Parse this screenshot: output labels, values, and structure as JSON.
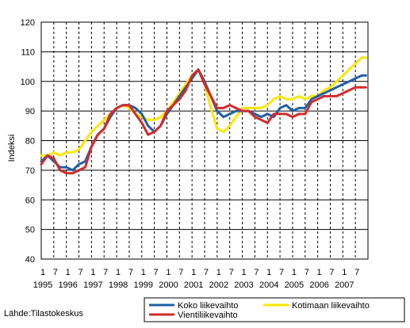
{
  "source": "Lähde:Tilastokeskus",
  "chart_data": {
    "type": "line",
    "title": "",
    "ylabel": "Indeksi",
    "xlabel": "",
    "ylim": [
      40,
      120
    ],
    "yticks": [
      40,
      50,
      60,
      70,
      80,
      90,
      100,
      110,
      120
    ],
    "month_ticks": [
      "1",
      "7",
      "1",
      "7",
      "1",
      "7",
      "1",
      "7",
      "1",
      "7",
      "1",
      "7",
      "1",
      "7",
      "1",
      "7",
      "1",
      "7",
      "1",
      "7",
      "1",
      "7",
      "1",
      "7",
      "1",
      "7"
    ],
    "years": [
      "1995",
      "1996",
      "1997",
      "1998",
      "1999",
      "2000",
      "2001",
      "2002",
      "2003",
      "2004",
      "2005",
      "2006",
      "2007"
    ],
    "x_start": "1995-01",
    "x_end": "2007-12",
    "grid": "horizontal solid, vertical dashed",
    "legend_position": "bottom",
    "colors": {
      "Koko liikevaihto": "#1f5fa8",
      "Kotimaan liikevaihto": "#ffe600",
      "Vientiliikevaihto": "#d42a2a"
    },
    "series": [
      {
        "name": "Koko liikevaihto",
        "values": [
          [
            0,
            73
          ],
          [
            3,
            75
          ],
          [
            6,
            73
          ],
          [
            9,
            71
          ],
          [
            12,
            71
          ],
          [
            15,
            70
          ],
          [
            18,
            72
          ],
          [
            21,
            73
          ],
          [
            24,
            78
          ],
          [
            27,
            82
          ],
          [
            30,
            84
          ],
          [
            33,
            88
          ],
          [
            36,
            91
          ],
          [
            39,
            92
          ],
          [
            42,
            92
          ],
          [
            45,
            91
          ],
          [
            48,
            89
          ],
          [
            51,
            85
          ],
          [
            54,
            83
          ],
          [
            57,
            85
          ],
          [
            60,
            89
          ],
          [
            63,
            92
          ],
          [
            66,
            95
          ],
          [
            69,
            98
          ],
          [
            72,
            101
          ],
          [
            75,
            104
          ],
          [
            78,
            100
          ],
          [
            81,
            95
          ],
          [
            84,
            90
          ],
          [
            87,
            88
          ],
          [
            90,
            89
          ],
          [
            93,
            90
          ],
          [
            96,
            90
          ],
          [
            99,
            90
          ],
          [
            102,
            89
          ],
          [
            105,
            88
          ],
          [
            108,
            89
          ],
          [
            111,
            88
          ],
          [
            114,
            91
          ],
          [
            117,
            92
          ],
          [
            120,
            90
          ],
          [
            123,
            91
          ],
          [
            126,
            91
          ],
          [
            129,
            94
          ],
          [
            132,
            95
          ],
          [
            135,
            96
          ],
          [
            138,
            97
          ],
          [
            141,
            98
          ],
          [
            144,
            99
          ],
          [
            147,
            100
          ],
          [
            150,
            101
          ],
          [
            153,
            102
          ],
          [
            155,
            102
          ]
        ]
      },
      {
        "name": "Kotimaan liikevaihto",
        "values": [
          [
            0,
            75
          ],
          [
            3,
            75
          ],
          [
            6,
            76
          ],
          [
            9,
            75
          ],
          [
            12,
            76
          ],
          [
            15,
            76
          ],
          [
            18,
            77
          ],
          [
            21,
            80
          ],
          [
            24,
            83
          ],
          [
            27,
            85
          ],
          [
            30,
            87
          ],
          [
            33,
            89
          ],
          [
            36,
            91
          ],
          [
            39,
            92
          ],
          [
            42,
            91
          ],
          [
            45,
            89
          ],
          [
            48,
            88
          ],
          [
            51,
            87
          ],
          [
            54,
            87
          ],
          [
            57,
            88
          ],
          [
            60,
            90
          ],
          [
            63,
            93
          ],
          [
            66,
            96
          ],
          [
            69,
            99
          ],
          [
            72,
            102
          ],
          [
            75,
            104
          ],
          [
            78,
            99
          ],
          [
            81,
            91
          ],
          [
            84,
            84
          ],
          [
            87,
            83
          ],
          [
            90,
            85
          ],
          [
            93,
            88
          ],
          [
            96,
            91
          ],
          [
            99,
            91
          ],
          [
            102,
            91
          ],
          [
            105,
            91
          ],
          [
            108,
            92
          ],
          [
            111,
            94
          ],
          [
            114,
            95
          ],
          [
            117,
            94
          ],
          [
            120,
            94
          ],
          [
            123,
            95
          ],
          [
            126,
            94
          ],
          [
            129,
            95
          ],
          [
            132,
            95
          ],
          [
            135,
            97
          ],
          [
            138,
            98
          ],
          [
            141,
            100
          ],
          [
            144,
            102
          ],
          [
            147,
            104
          ],
          [
            150,
            106
          ],
          [
            153,
            108
          ],
          [
            155,
            108
          ]
        ]
      },
      {
        "name": "Vientiliikevaihto",
        "values": [
          [
            0,
            72
          ],
          [
            3,
            75
          ],
          [
            6,
            74
          ],
          [
            9,
            70
          ],
          [
            12,
            69
          ],
          [
            15,
            69
          ],
          [
            18,
            70
          ],
          [
            21,
            71
          ],
          [
            24,
            78
          ],
          [
            27,
            82
          ],
          [
            30,
            84
          ],
          [
            33,
            89
          ],
          [
            36,
            91
          ],
          [
            39,
            92
          ],
          [
            42,
            92
          ],
          [
            45,
            89
          ],
          [
            48,
            86
          ],
          [
            51,
            82
          ],
          [
            54,
            83
          ],
          [
            57,
            85
          ],
          [
            60,
            90
          ],
          [
            63,
            92
          ],
          [
            66,
            94
          ],
          [
            69,
            97
          ],
          [
            72,
            102
          ],
          [
            75,
            104
          ],
          [
            78,
            99
          ],
          [
            81,
            95
          ],
          [
            84,
            91
          ],
          [
            87,
            91
          ],
          [
            90,
            92
          ],
          [
            93,
            91
          ],
          [
            96,
            90
          ],
          [
            99,
            90
          ],
          [
            102,
            88
          ],
          [
            105,
            87
          ],
          [
            108,
            86
          ],
          [
            111,
            89
          ],
          [
            114,
            89
          ],
          [
            117,
            89
          ],
          [
            120,
            88
          ],
          [
            123,
            89
          ],
          [
            126,
            89
          ],
          [
            129,
            93
          ],
          [
            132,
            94
          ],
          [
            135,
            95
          ],
          [
            138,
            95
          ],
          [
            141,
            95
          ],
          [
            144,
            96
          ],
          [
            147,
            97
          ],
          [
            150,
            98
          ],
          [
            153,
            98
          ],
          [
            155,
            98
          ]
        ]
      }
    ]
  }
}
